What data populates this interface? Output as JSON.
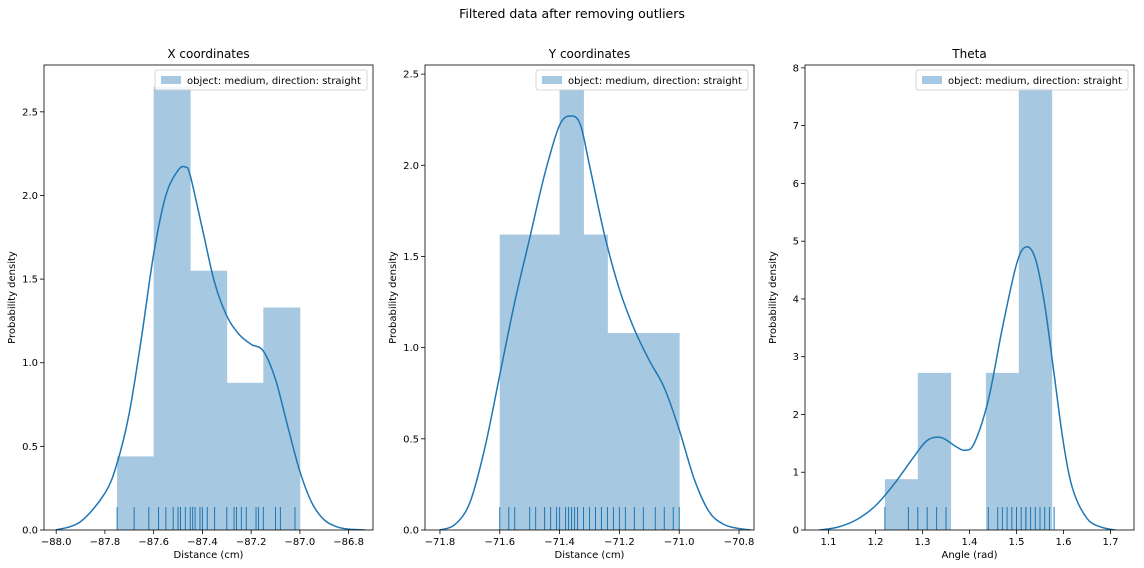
{
  "figure": {
    "suptitle": "Filtered data after removing outliers"
  },
  "colors": {
    "hist_fill": "#a6c8e0",
    "line": "#1f77b4",
    "axis": "#000000",
    "background": "#ffffff"
  },
  "chart_data": [
    {
      "type": "bar",
      "title": "X coordinates",
      "xlabel": "Distance (cm)",
      "ylabel": "Probability density",
      "xlim": [
        -88.05,
        -86.7
      ],
      "ylim": [
        0,
        2.78
      ],
      "xticks": [
        -88.0,
        -87.8,
        -87.6,
        -87.4,
        -87.2,
        -87.0,
        -86.8
      ],
      "xtick_labels": [
        "−88.0",
        "−87.8",
        "−87.6",
        "−87.4",
        "−87.2",
        "−87.0",
        "−86.8"
      ],
      "yticks": [
        0.0,
        0.5,
        1.0,
        1.5,
        2.0,
        2.5
      ],
      "ytick_labels": [
        "0.0",
        "0.5",
        "1.0",
        "1.5",
        "2.0",
        "2.5"
      ],
      "legend": {
        "label": "object: medium, direction: straight",
        "position": "top-right"
      },
      "histogram": {
        "edges": [
          -87.75,
          -87.6,
          -87.45,
          -87.3,
          -87.15,
          -87.0
        ],
        "heights": [
          0.44,
          2.65,
          1.55,
          0.88,
          1.33
        ]
      },
      "kde": {
        "x": [
          -88.0,
          -87.9,
          -87.8,
          -87.75,
          -87.7,
          -87.65,
          -87.6,
          -87.55,
          -87.5,
          -87.47,
          -87.45,
          -87.4,
          -87.35,
          -87.3,
          -87.25,
          -87.2,
          -87.15,
          -87.1,
          -87.05,
          -87.0,
          -86.95,
          -86.9,
          -86.85,
          -86.8,
          -86.73
        ],
        "y": [
          0.0,
          0.05,
          0.22,
          0.4,
          0.7,
          1.15,
          1.65,
          2.0,
          2.15,
          2.17,
          2.12,
          1.8,
          1.48,
          1.28,
          1.17,
          1.11,
          1.07,
          0.9,
          0.62,
          0.35,
          0.16,
          0.06,
          0.02,
          0.005,
          0.0
        ]
      },
      "rug": [
        -87.75,
        -87.68,
        -87.62,
        -87.58,
        -87.55,
        -87.52,
        -87.5,
        -87.49,
        -87.47,
        -87.45,
        -87.44,
        -87.43,
        -87.41,
        -87.4,
        -87.38,
        -87.35,
        -87.3,
        -87.27,
        -87.26,
        -87.24,
        -87.22,
        -87.18,
        -87.17,
        -87.15,
        -87.1,
        -87.08,
        -87.02
      ]
    },
    {
      "type": "bar",
      "title": "Y coordinates",
      "xlabel": "Distance (cm)",
      "ylabel": "Probability density",
      "xlim": [
        -71.85,
        -70.75
      ],
      "ylim": [
        0,
        2.55
      ],
      "xticks": [
        -71.8,
        -71.6,
        -71.4,
        -71.2,
        -71.0,
        -70.8
      ],
      "xtick_labels": [
        "−71.8",
        "−71.6",
        "−71.4",
        "−71.2",
        "−71.0",
        "−70.8"
      ],
      "yticks": [
        0.0,
        0.5,
        1.0,
        1.5,
        2.0,
        2.5
      ],
      "ytick_labels": [
        "0.0",
        "0.5",
        "1.0",
        "1.5",
        "2.0",
        "2.5"
      ],
      "legend": {
        "label": "object: medium, direction: straight",
        "position": "top-right"
      },
      "histogram": {
        "edges": [
          -71.6,
          -71.52,
          -71.44,
          -71.4,
          -71.32,
          -71.24,
          -71.16,
          -71.08,
          -71.0
        ],
        "heights": [
          1.62,
          1.62,
          1.62,
          2.42,
          1.62,
          1.08,
          1.08,
          1.08
        ]
      },
      "kde": {
        "x": [
          -71.8,
          -71.75,
          -71.7,
          -71.65,
          -71.6,
          -71.55,
          -71.5,
          -71.45,
          -71.4,
          -71.36,
          -71.33,
          -71.3,
          -71.25,
          -71.2,
          -71.15,
          -71.1,
          -71.05,
          -71.0,
          -70.95,
          -70.9,
          -70.85,
          -70.8,
          -70.76
        ],
        "y": [
          0.0,
          0.03,
          0.15,
          0.45,
          0.85,
          1.25,
          1.6,
          1.95,
          2.22,
          2.27,
          2.22,
          2.0,
          1.62,
          1.32,
          1.1,
          0.93,
          0.78,
          0.55,
          0.28,
          0.1,
          0.03,
          0.008,
          0.0
        ]
      },
      "rug": [
        -71.6,
        -71.57,
        -71.55,
        -71.5,
        -71.48,
        -71.45,
        -71.43,
        -71.41,
        -71.4,
        -71.38,
        -71.37,
        -71.36,
        -71.35,
        -71.34,
        -71.32,
        -71.3,
        -71.28,
        -71.26,
        -71.24,
        -71.22,
        -71.2,
        -71.18,
        -71.15,
        -71.12,
        -71.08,
        -71.05,
        -71.02,
        -71.0
      ]
    },
    {
      "type": "bar",
      "title": "Theta",
      "xlabel": "Angle (rad)",
      "ylabel": "Probability density",
      "xlim": [
        1.05,
        1.75
      ],
      "ylim": [
        0,
        8.05
      ],
      "xticks": [
        1.1,
        1.2,
        1.3,
        1.4,
        1.5,
        1.6,
        1.7
      ],
      "xtick_labels": [
        "1.1",
        "1.2",
        "1.3",
        "1.4",
        "1.5",
        "1.6",
        "1.7"
      ],
      "yticks": [
        0,
        1,
        2,
        3,
        4,
        5,
        6,
        7,
        8
      ],
      "ytick_labels": [
        "0",
        "1",
        "2",
        "3",
        "4",
        "5",
        "6",
        "7",
        "8"
      ],
      "legend": {
        "label": "object: medium, direction: straight",
        "position": "top-right"
      },
      "histogram": {
        "edges": [
          1.22,
          1.29,
          1.36,
          1.435,
          1.505,
          1.575
        ],
        "heights": [
          0.88,
          2.72,
          0.0,
          2.72,
          7.65
        ]
      },
      "kde": {
        "x": [
          1.08,
          1.12,
          1.16,
          1.2,
          1.24,
          1.28,
          1.31,
          1.34,
          1.37,
          1.39,
          1.41,
          1.44,
          1.47,
          1.5,
          1.52,
          1.54,
          1.56,
          1.58,
          1.6,
          1.62,
          1.65,
          1.68,
          1.71
        ],
        "y": [
          0.0,
          0.05,
          0.18,
          0.42,
          0.8,
          1.25,
          1.55,
          1.6,
          1.45,
          1.38,
          1.5,
          2.25,
          3.5,
          4.6,
          4.9,
          4.7,
          3.9,
          2.7,
          1.5,
          0.7,
          0.2,
          0.05,
          0.0
        ]
      },
      "rug": [
        1.22,
        1.27,
        1.29,
        1.31,
        1.33,
        1.35,
        1.44,
        1.46,
        1.47,
        1.48,
        1.49,
        1.5,
        1.51,
        1.52,
        1.52,
        1.53,
        1.54,
        1.55,
        1.56,
        1.57,
        1.58
      ]
    }
  ]
}
